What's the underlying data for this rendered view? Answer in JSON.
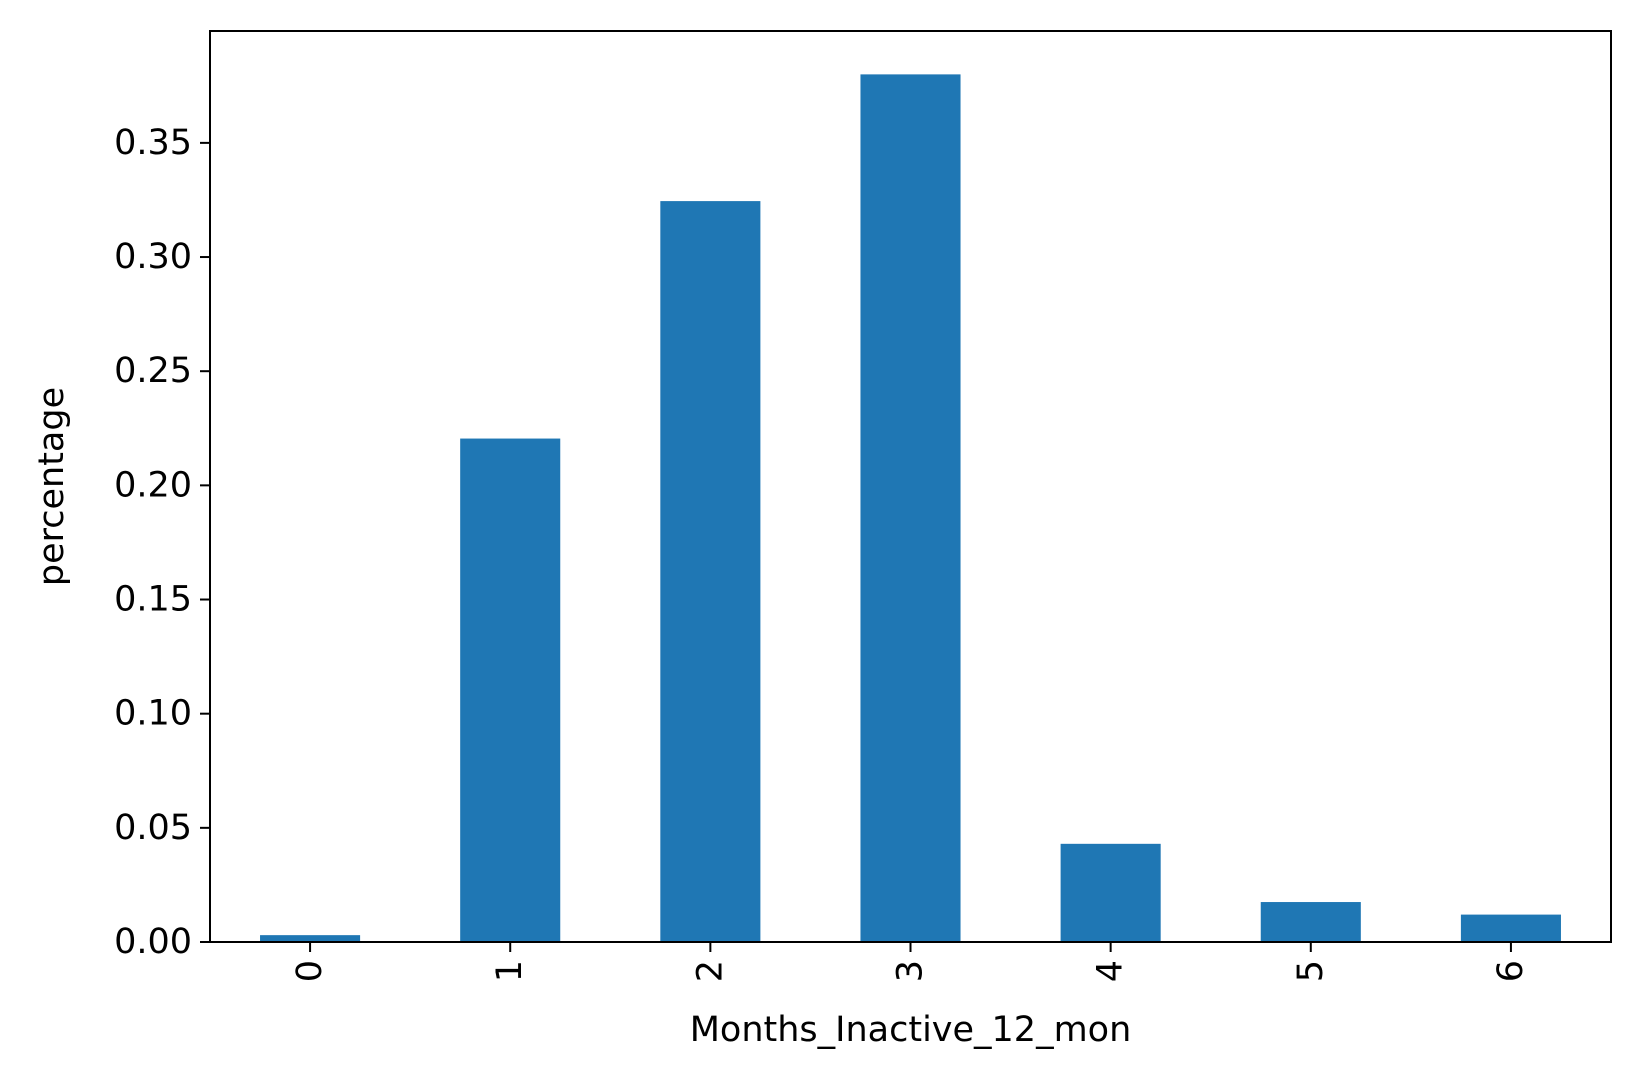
{
  "chart_data": {
    "type": "bar",
    "title": "",
    "xlabel": "Months_Inactive_12_mon",
    "ylabel": "percentage",
    "categories": [
      "0",
      "1",
      "2",
      "3",
      "4",
      "5",
      "6"
    ],
    "values": [
      0.003,
      0.2205,
      0.3245,
      0.38,
      0.043,
      0.0175,
      0.012
    ],
    "ylim": [
      0,
      0.399
    ],
    "yticks": [
      0.0,
      0.05,
      0.1,
      0.15,
      0.2,
      0.25,
      0.3,
      0.35
    ],
    "ytick_labels": [
      "0.00",
      "0.05",
      "0.10",
      "0.15",
      "0.20",
      "0.25",
      "0.30",
      "0.35"
    ],
    "grid": false,
    "legend": "none",
    "bar_color": "#1f77b4",
    "xtick_rotation": "vertical"
  }
}
